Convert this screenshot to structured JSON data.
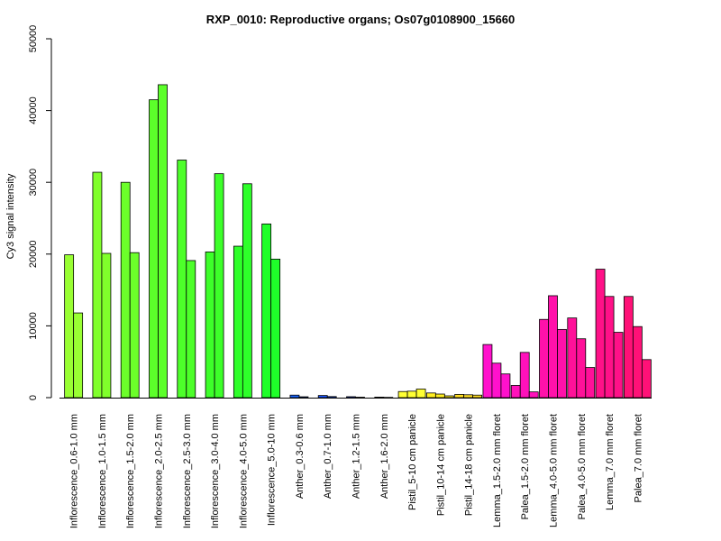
{
  "chart_data": {
    "type": "bar",
    "title": "RXP_0010: Reproductive organs; Os07g0108900_15660",
    "xlabel": "",
    "ylabel": "Cy3 signal intensity",
    "ylim": [
      0,
      50000
    ],
    "yticks": [
      0,
      10000,
      20000,
      30000,
      40000,
      50000
    ],
    "grid": false,
    "legend": "none",
    "groups": [
      {
        "label": "Inflorescence_0.6-1.0 mm",
        "color": "#99ff33",
        "values": [
          19900,
          11800
        ]
      },
      {
        "label": "Inflorescence_1.0-1.5 mm",
        "color": "#80ff2b",
        "values": [
          31400,
          20100
        ]
      },
      {
        "label": "Inflorescence_1.5-2.0 mm",
        "color": "#6cff2a",
        "values": [
          30000,
          20200
        ]
      },
      {
        "label": "Inflorescence_2.0-2.5 mm",
        "color": "#5cff2a",
        "values": [
          41500,
          43600
        ]
      },
      {
        "label": "Inflorescence_2.5-3.0 mm",
        "color": "#4dff2a",
        "values": [
          33100,
          19100
        ]
      },
      {
        "label": "Inflorescence_3.0-4.0 mm",
        "color": "#3dff2a",
        "values": [
          20300,
          31200
        ]
      },
      {
        "label": "Inflorescence_4.0-5.0 mm",
        "color": "#2eff2a",
        "values": [
          21100,
          29800
        ]
      },
      {
        "label": "Inflorescence_5.0-10 mm",
        "color": "#1fff2a",
        "values": [
          24200,
          19300
        ]
      },
      {
        "label": "Anther_0.3-0.6 mm",
        "color": "#1a66ff",
        "values": [
          350,
          120
        ]
      },
      {
        "label": "Anther_0.7-1.0 mm",
        "color": "#1a55ff",
        "values": [
          300,
          150
        ]
      },
      {
        "label": "Anther_1.2-1.5 mm",
        "color": "#1a44ff",
        "values": [
          130,
          60
        ]
      },
      {
        "label": "Anther_1.6-2.0 mm",
        "color": "#1a33ff",
        "values": [
          70,
          40
        ]
      },
      {
        "label": "Pistil_5-10 cm panicle",
        "color": "#ffff33",
        "values": [
          850,
          900,
          1200
        ]
      },
      {
        "label": "Pistil_10-14 cm panicle",
        "color": "#ffee22",
        "values": [
          650,
          500,
          250
        ]
      },
      {
        "label": "Pistil_14-18 cm panicle",
        "color": "#ffdd22",
        "values": [
          450,
          400,
          350
        ]
      },
      {
        "label": "Lemma_1.5-2.0 mm floret",
        "color": "#ff11cc",
        "values": [
          7400,
          4800,
          3300
        ]
      },
      {
        "label": "Palea_1.5-2.0 mm floret",
        "color": "#ff11bb",
        "values": [
          1700,
          6300,
          800
        ]
      },
      {
        "label": "Lemma_4.0-5.0 mm floret",
        "color": "#ff11aa",
        "values": [
          10900,
          14200,
          9500
        ]
      },
      {
        "label": "Palea_4.0-5.0 mm floret",
        "color": "#ff1199",
        "values": [
          11100,
          8200,
          4200
        ]
      },
      {
        "label": "Lemma_7.0 mm floret",
        "color": "#ff1188",
        "values": [
          17900,
          14100,
          9100
        ]
      },
      {
        "label": "Palea_7.0 mm floret",
        "color": "#ff1177",
        "values": [
          14100,
          9900,
          5300
        ]
      }
    ]
  }
}
